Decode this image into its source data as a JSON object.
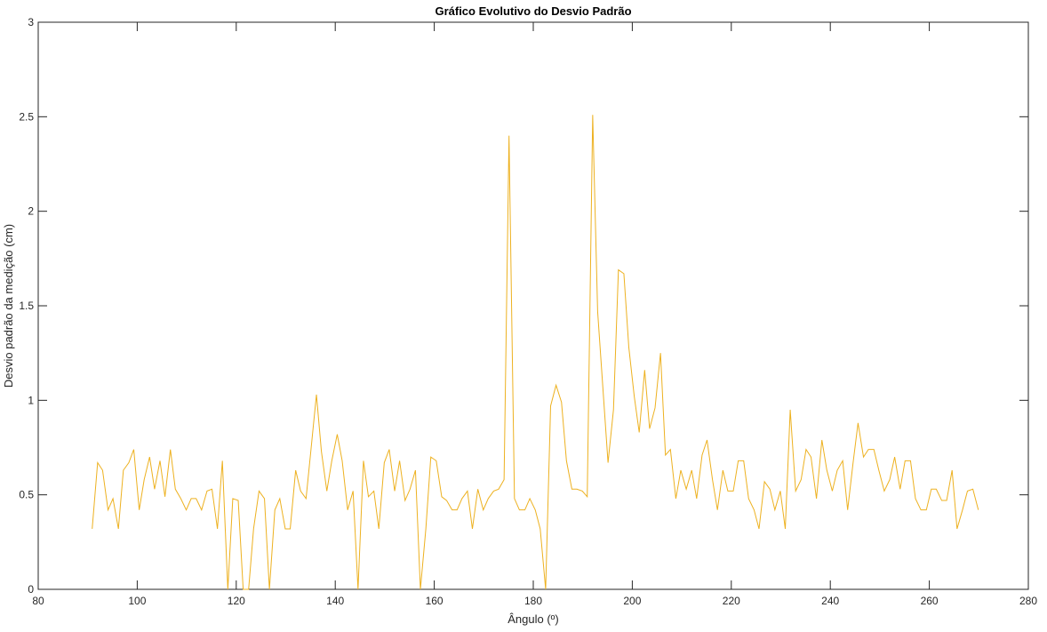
{
  "chart_data": {
    "type": "line",
    "title": "Gráfico Evolutivo do Desvio Padrão",
    "xlabel": "Ângulo (º)",
    "ylabel": "Desvio padrão da medição (cm)",
    "xlim": [
      80,
      280
    ],
    "xticks": [
      80,
      100,
      120,
      140,
      160,
      180,
      200,
      220,
      240,
      260,
      280
    ],
    "ylim": [
      0,
      3
    ],
    "yticks": [
      0,
      0.5,
      1,
      1.5,
      2,
      2.5,
      3
    ],
    "x": [
      90.9,
      92.0,
      93.0,
      94.1,
      95.1,
      96.2,
      97.2,
      98.3,
      99.3,
      100.4,
      101.4,
      102.5,
      103.5,
      104.6,
      105.6,
      106.7,
      107.7,
      108.8,
      109.9,
      110.9,
      111.9,
      113.0,
      114.1,
      115.1,
      116.2,
      117.2,
      118.3,
      119.3,
      120.4,
      121.4,
      122.5,
      123.5,
      124.6,
      125.7,
      126.7,
      127.8,
      128.8,
      129.9,
      130.9,
      132.0,
      133.0,
      134.1,
      135.1,
      136.2,
      137.2,
      138.3,
      139.3,
      140.4,
      141.4,
      142.5,
      143.6,
      144.6,
      145.7,
      146.7,
      147.8,
      148.8,
      149.9,
      150.9,
      152.0,
      153.0,
      154.1,
      155.1,
      156.2,
      157.2,
      158.3,
      159.3,
      160.4,
      161.5,
      162.5,
      163.6,
      164.6,
      165.6,
      166.7,
      167.7,
      168.8,
      169.9,
      170.9,
      172.0,
      173.0,
      174.1,
      175.1,
      176.2,
      177.2,
      178.3,
      179.3,
      180.4,
      181.4,
      182.5,
      183.5,
      184.6,
      185.7,
      186.7,
      187.8,
      188.8,
      189.9,
      190.9,
      192.0,
      193.0,
      194.1,
      195.1,
      196.2,
      197.2,
      198.3,
      199.3,
      200.4,
      201.4,
      202.5,
      203.5,
      204.6,
      205.7,
      206.7,
      207.7,
      208.8,
      209.8,
      210.9,
      212.0,
      213.0,
      214.1,
      215.1,
      216.2,
      217.2,
      218.3,
      219.3,
      220.4,
      221.4,
      222.5,
      223.5,
      224.6,
      225.6,
      226.7,
      227.8,
      228.8,
      229.9,
      230.9,
      231.9,
      233.0,
      234.1,
      235.1,
      236.1,
      237.2,
      238.3,
      239.3,
      240.4,
      241.4,
      242.5,
      243.5,
      244.6,
      245.6,
      246.7,
      247.7,
      248.8,
      249.8,
      250.9,
      252.0,
      253.0,
      254.1,
      255.1,
      256.2,
      257.2,
      258.3,
      259.4,
      260.4,
      261.4,
      262.5,
      263.5,
      264.6,
      265.6,
      266.7,
      267.7,
      268.8,
      269.9
    ],
    "series": [
      {
        "color": "#edb120",
        "values": [
          0.32,
          0.67,
          0.63,
          0.42,
          0.48,
          0.32,
          0.63,
          0.67,
          0.74,
          0.42,
          0.58,
          0.7,
          0.53,
          0.68,
          0.49,
          0.74,
          0.53,
          0.48,
          0.42,
          0.48,
          0.48,
          0.42,
          0.52,
          0.53,
          0.32,
          0.68,
          0,
          0.48,
          0.47,
          0,
          0,
          0.32,
          0.52,
          0.48,
          0,
          0.42,
          0.48,
          0.32,
          0.32,
          0.63,
          0.52,
          0.48,
          0.74,
          1.03,
          0.73,
          0.52,
          0.68,
          0.82,
          0.68,
          0.42,
          0.52,
          0,
          0.68,
          0.49,
          0.52,
          0.32,
          0.67,
          0.74,
          0.52,
          0.68,
          0.47,
          0.53,
          0.63,
          0,
          0.32,
          0.7,
          0.68,
          0.49,
          0.47,
          0.42,
          0.42,
          0.48,
          0.52,
          0.32,
          0.53,
          0.42,
          0.48,
          0.52,
          0.53,
          0.58,
          2.4,
          0.48,
          0.42,
          0.42,
          0.48,
          0.42,
          0.32,
          0,
          0.97,
          1.08,
          0.99,
          0.68,
          0.53,
          0.53,
          0.52,
          0.49,
          2.51,
          1.47,
          1.05,
          0.67,
          0.95,
          1.69,
          1.67,
          1.28,
          1.02,
          0.83,
          1.16,
          0.85,
          0.96,
          1.25,
          0.71,
          0.74,
          0.48,
          0.63,
          0.53,
          0.63,
          0.48,
          0.71,
          0.79,
          0.58,
          0.42,
          0.63,
          0.52,
          0.52,
          0.68,
          0.68,
          0.48,
          0.42,
          0.32,
          0.57,
          0.53,
          0.42,
          0.52,
          0.32,
          0.95,
          0.52,
          0.58,
          0.74,
          0.7,
          0.48,
          0.79,
          0.63,
          0.52,
          0.63,
          0.68,
          0.42,
          0.67,
          0.88,
          0.7,
          0.74,
          0.74,
          0.63,
          0.52,
          0.58,
          0.7,
          0.53,
          0.68,
          0.68,
          0.48,
          0.42,
          0.42,
          0.53,
          0.53,
          0.47,
          0.47,
          0.63,
          0.32,
          0.42,
          0.52,
          0.53,
          0.42
        ]
      }
    ]
  }
}
